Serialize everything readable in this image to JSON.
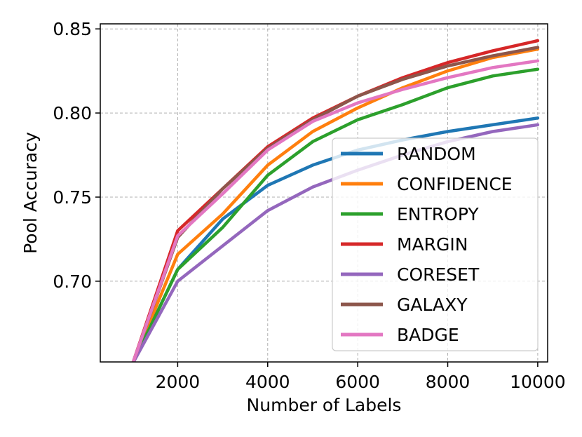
{
  "chart_data": {
    "type": "line",
    "title": "",
    "xlabel": "Number of Labels",
    "ylabel": "Pool Accuracy",
    "xlim": [
      280,
      10220
    ],
    "ylim": [
      0.652,
      0.853
    ],
    "xticks": [
      2000,
      4000,
      6000,
      8000,
      10000
    ],
    "yticks": [
      0.7,
      0.75,
      0.8,
      0.85
    ],
    "xtick_labels": [
      "2000",
      "4000",
      "6000",
      "8000",
      "10000"
    ],
    "ytick_labels": [
      "0.70",
      "0.75",
      "0.80",
      "0.85"
    ],
    "grid": true,
    "legend_position": "lower right",
    "x": [
      1000,
      2000,
      3000,
      4000,
      5000,
      6000,
      7000,
      8000,
      9000,
      10000
    ],
    "series": [
      {
        "name": "RANDOM",
        "color": "#1f77b4",
        "values": [
          0.651,
          0.707,
          0.737,
          0.757,
          0.769,
          0.778,
          0.784,
          0.789,
          0.793,
          0.797
        ]
      },
      {
        "name": "CONFIDENCE",
        "color": "#ff7f0e",
        "values": [
          0.651,
          0.716,
          0.74,
          0.769,
          0.789,
          0.803,
          0.815,
          0.825,
          0.833,
          0.838
        ]
      },
      {
        "name": "ENTROPY",
        "color": "#2ca02c",
        "values": [
          0.651,
          0.707,
          0.732,
          0.763,
          0.783,
          0.796,
          0.805,
          0.815,
          0.822,
          0.826
        ]
      },
      {
        "name": "MARGIN",
        "color": "#d62728",
        "values": [
          0.651,
          0.73,
          0.755,
          0.78,
          0.797,
          0.81,
          0.821,
          0.83,
          0.837,
          0.843
        ]
      },
      {
        "name": "CORESET",
        "color": "#9467bd",
        "values": [
          0.651,
          0.7,
          0.721,
          0.742,
          0.756,
          0.766,
          0.775,
          0.783,
          0.789,
          0.793
        ]
      },
      {
        "name": "GALAXY",
        "color": "#8c564b",
        "values": [
          0.651,
          0.726,
          0.755,
          0.779,
          0.796,
          0.81,
          0.82,
          0.828,
          0.834,
          0.839
        ]
      },
      {
        "name": "BADGE",
        "color": "#e377c2",
        "values": [
          0.651,
          0.727,
          0.752,
          0.778,
          0.795,
          0.806,
          0.814,
          0.821,
          0.827,
          0.831
        ]
      }
    ]
  }
}
